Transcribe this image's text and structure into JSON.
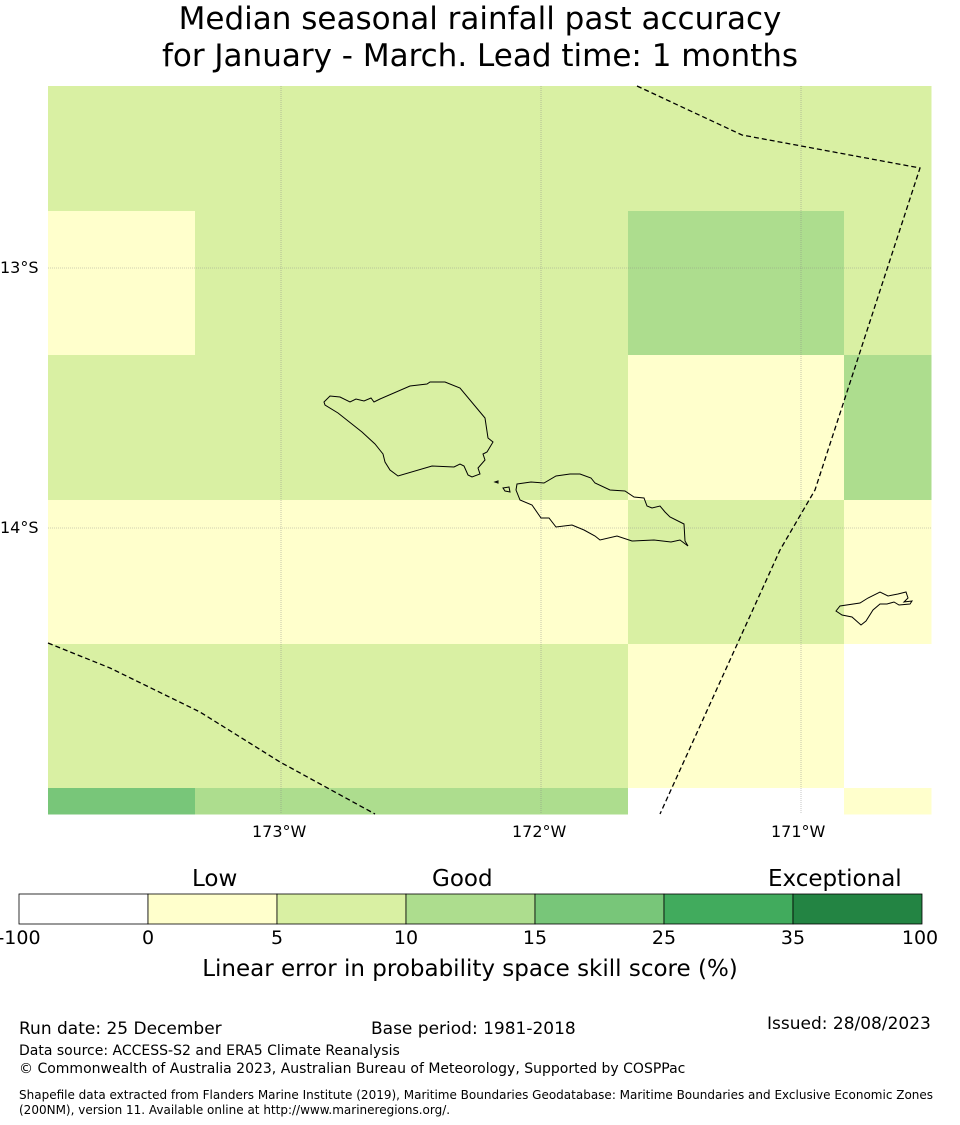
{
  "title": {
    "line1": "Median seasonal rainfall past accuracy",
    "line2": "for January - March. Lead time: 1 months"
  },
  "map": {
    "lat_labels": [
      "13°S",
      "14°S"
    ],
    "lon_labels": [
      "173°W",
      "172°W",
      "171°W"
    ],
    "colors": {
      "c0": "#ffffcc",
      "c5": "#d9f0a3",
      "c10": "#addd8e",
      "c15": "#78c679",
      "c25": "#41ab5d",
      "c35": "#238443",
      "cneg": "#ffffff"
    },
    "cells": [
      [
        "c5",
        "c5",
        "c5",
        "c5",
        "c5",
        "c5",
        "c5",
        "c5",
        "c5",
        "c5"
      ],
      [
        "c0",
        "c5",
        "c5",
        "c5",
        "c5",
        "c5",
        "c5",
        "c10",
        "c10",
        "c5"
      ],
      [
        "c5",
        "c5",
        "c5",
        "c5",
        "c5",
        "c5",
        "c5",
        "c0",
        "c0",
        "c10"
      ],
      [
        "c0",
        "c0",
        "c0",
        "c0",
        "c0",
        "c0",
        "c0",
        "c5",
        "c5",
        "c0"
      ],
      [
        "c5",
        "c5",
        "c5",
        "c5",
        "c5",
        "c5",
        "c5",
        "c0",
        "c0",
        "cneg"
      ],
      [
        "c15",
        "c10",
        "c10",
        "c10",
        "c10",
        "c10",
        "c10",
        "cneg",
        "cneg",
        "c0"
      ]
    ]
  },
  "colorbar": {
    "categories": [
      "Low",
      "Good",
      "Exceptional"
    ],
    "ticks": [
      "-100",
      "0",
      "5",
      "10",
      "15",
      "25",
      "35",
      "100"
    ],
    "label": "Linear error in probability space skill score (%)"
  },
  "footer": {
    "run_date": "Run date: 25 December",
    "base_period": "Base period: 1981-2018",
    "issued": "Issued: 28/08/2023",
    "data_source": "Data source: ACCESS-S2 and ERA5 Climate Reanalysis",
    "copyright": "© Commonwealth of Australia 2023, Australian Bureau of Meteorology, Supported by COSPPac",
    "shapefile": "Shapefile data extracted from Flanders Marine Institute (2019), Maritime Boundaries Geodatabase: Maritime Boundaries and Exclusive Economic Zones (200NM), version 11. Available online at http://www.marineregions.org/."
  }
}
